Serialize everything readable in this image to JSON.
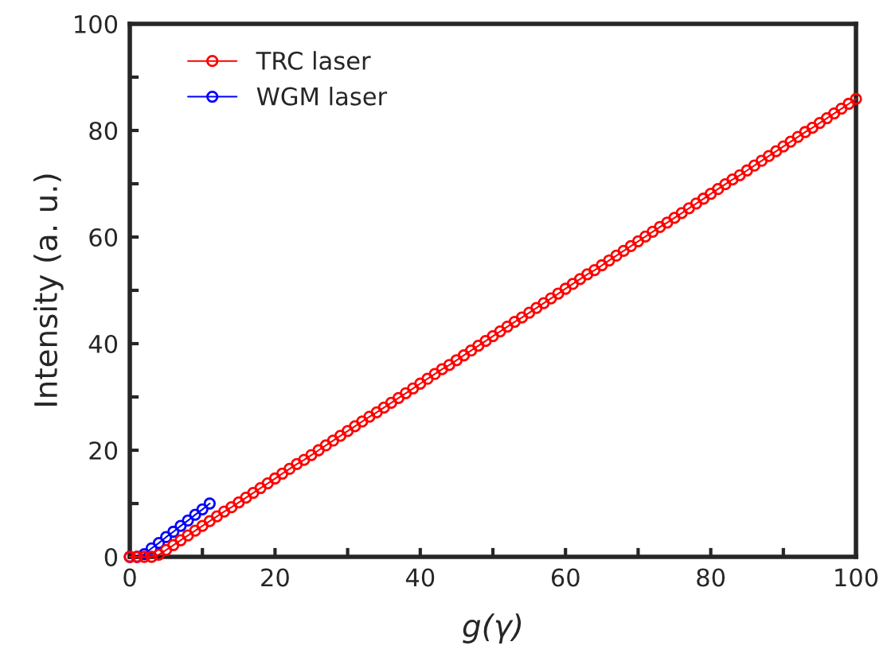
{
  "chart_data": {
    "type": "line",
    "xlabel": "g(γ)",
    "ylabel": "Intensity (a. u.)",
    "xlim": [
      0,
      100
    ],
    "ylim": [
      0,
      100
    ],
    "xticks": [
      0,
      {
        "value": 10,
        "label": null
      },
      20,
      {
        "value": 30,
        "label": null
      },
      40,
      {
        "value": 50,
        "label": null
      },
      60,
      {
        "value": 70,
        "label": null
      },
      80,
      {
        "value": 90,
        "label": null
      },
      100
    ],
    "yticks": [
      0,
      {
        "value": 10,
        "label": null
      },
      20,
      {
        "value": 30,
        "label": null
      },
      40,
      {
        "value": 50,
        "label": null
      },
      60,
      {
        "value": 70,
        "label": null
      },
      80,
      {
        "value": 90,
        "label": null
      },
      100
    ],
    "marker": "circle",
    "line_style": "solid",
    "legend": "top left",
    "grid": false,
    "series": [
      {
        "name": "TRC laser",
        "color": "#ff0000",
        "x": [
          0,
          1,
          2,
          3,
          4,
          5,
          6,
          7,
          8,
          9,
          10,
          11,
          12,
          13,
          14,
          15,
          16,
          17,
          18,
          19,
          20,
          21,
          22,
          23,
          24,
          25,
          26,
          27,
          28,
          29,
          30,
          31,
          32,
          33,
          34,
          35,
          36,
          37,
          38,
          39,
          40,
          41,
          42,
          43,
          44,
          45,
          46,
          47,
          48,
          49,
          50,
          51,
          52,
          53,
          54,
          55,
          56,
          57,
          58,
          59,
          60,
          61,
          62,
          63,
          64,
          65,
          66,
          67,
          68,
          69,
          70,
          71,
          72,
          73,
          74,
          75,
          76,
          77,
          78,
          79,
          80,
          81,
          82,
          83,
          84,
          85,
          86,
          87,
          88,
          89,
          90,
          91,
          92,
          93,
          94,
          95,
          96,
          97,
          98,
          99,
          100
        ],
        "values": [
          0,
          0,
          0,
          0,
          0.4,
          1.3,
          2.2,
          3.1,
          4.0,
          4.9,
          5.8,
          6.7,
          7.6,
          8.5,
          9.3,
          10.2,
          11.1,
          12.0,
          12.9,
          13.8,
          14.7,
          15.6,
          16.5,
          17.4,
          18.2,
          19.1,
          20.0,
          20.9,
          21.8,
          22.7,
          23.6,
          24.5,
          25.4,
          26.3,
          27.1,
          28.0,
          28.9,
          29.8,
          30.7,
          31.6,
          32.5,
          33.4,
          34.3,
          35.2,
          36.0,
          36.9,
          37.8,
          38.7,
          39.6,
          40.5,
          41.4,
          42.3,
          43.2,
          44.1,
          44.9,
          45.8,
          46.7,
          47.6,
          48.5,
          49.4,
          50.3,
          51.2,
          52.1,
          53.0,
          53.8,
          54.7,
          55.6,
          56.5,
          57.4,
          58.3,
          59.2,
          60.1,
          61.0,
          61.9,
          62.7,
          63.6,
          64.5,
          65.4,
          66.3,
          67.2,
          68.1,
          69.0,
          69.9,
          70.8,
          71.6,
          72.5,
          73.4,
          74.3,
          75.2,
          76.1,
          77.0,
          77.9,
          78.8,
          79.7,
          80.5,
          81.4,
          82.3,
          83.2,
          84.1,
          85.0,
          85.9
        ]
      },
      {
        "name": "WGM laser",
        "color": "#0000ff",
        "x": [
          0,
          1,
          2,
          3,
          4,
          5,
          6,
          7,
          8,
          9,
          10,
          11
        ],
        "values": [
          0,
          0,
          0.5,
          1.6,
          2.6,
          3.7,
          4.7,
          5.8,
          6.8,
          7.9,
          8.9,
          10.0
        ]
      }
    ]
  }
}
